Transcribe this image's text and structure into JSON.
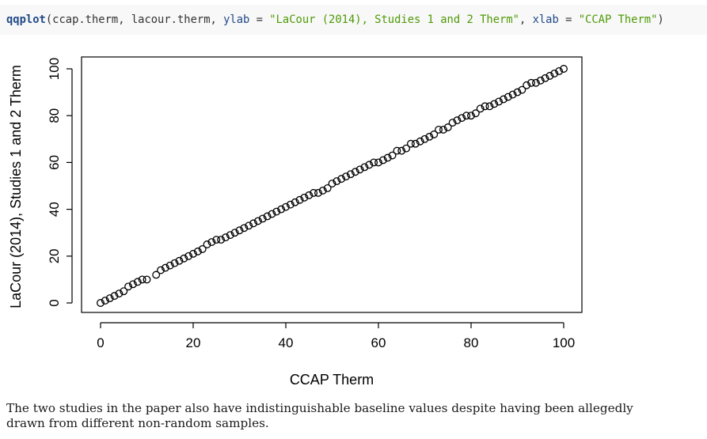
{
  "code": {
    "function": "qqplot",
    "args_plain": "(ccap.therm, lacour.therm, ",
    "ylab_key": "ylab",
    "eq1": " = ",
    "ylab_value": "\"LaCour (2014), Studies 1 and 2 Therm\"",
    "sep": ", ",
    "xlab_key": "xlab",
    "eq2": " = ",
    "xlab_value": "\"CCAP Therm\"",
    "close": ")"
  },
  "chart_data": {
    "type": "scatter",
    "xlabel": "CCAP Therm",
    "ylabel": "LaCour (2014), Studies 1 and 2 Therm",
    "xlim": [
      0,
      100
    ],
    "ylim": [
      0,
      100
    ],
    "xticks": [
      "0",
      "20",
      "40",
      "60",
      "80",
      "100"
    ],
    "yticks": [
      "0",
      "20",
      "40",
      "60",
      "80",
      "100"
    ],
    "grid": false,
    "x": [
      0,
      1,
      2,
      3,
      4,
      5,
      6,
      7,
      8,
      9,
      10,
      12,
      13,
      14,
      15,
      16,
      17,
      18,
      19,
      20,
      21,
      22,
      23,
      24,
      25,
      26,
      27,
      28,
      29,
      30,
      31,
      32,
      33,
      34,
      35,
      36,
      37,
      38,
      39,
      40,
      41,
      42,
      43,
      44,
      45,
      46,
      47,
      48,
      49,
      50,
      51,
      52,
      53,
      54,
      55,
      56,
      57,
      58,
      59,
      60,
      61,
      62,
      63,
      64,
      65,
      66,
      67,
      68,
      69,
      70,
      71,
      72,
      73,
      74,
      75,
      76,
      77,
      78,
      79,
      80,
      81,
      82,
      83,
      84,
      85,
      86,
      87,
      88,
      89,
      90,
      91,
      92,
      93,
      94,
      95,
      96,
      97,
      98,
      99,
      100
    ],
    "y": [
      0,
      1,
      2,
      3,
      4,
      5,
      7,
      8,
      9,
      10,
      10,
      12,
      14,
      15,
      16,
      17,
      18,
      19,
      20,
      21,
      22,
      23,
      25,
      26,
      27,
      27,
      28,
      29,
      30,
      31,
      32,
      33,
      34,
      35,
      36,
      37,
      38,
      39,
      40,
      41,
      42,
      43,
      44,
      45,
      46,
      47,
      47,
      48,
      49,
      51,
      52,
      53,
      54,
      55,
      56,
      57,
      58,
      59,
      60,
      60,
      61,
      62,
      63,
      65,
      65,
      66,
      68,
      68,
      69,
      70,
      71,
      72,
      74,
      74,
      75,
      77,
      78,
      79,
      80,
      80,
      81,
      83,
      84,
      84,
      85,
      86,
      87,
      88,
      89,
      90,
      91,
      93,
      94,
      94,
      95,
      96,
      97,
      98,
      99,
      100
    ]
  },
  "caption": "The two studies in the paper also have indistinguishable baseline values despite having been allegedly drawn from different non-random samples."
}
